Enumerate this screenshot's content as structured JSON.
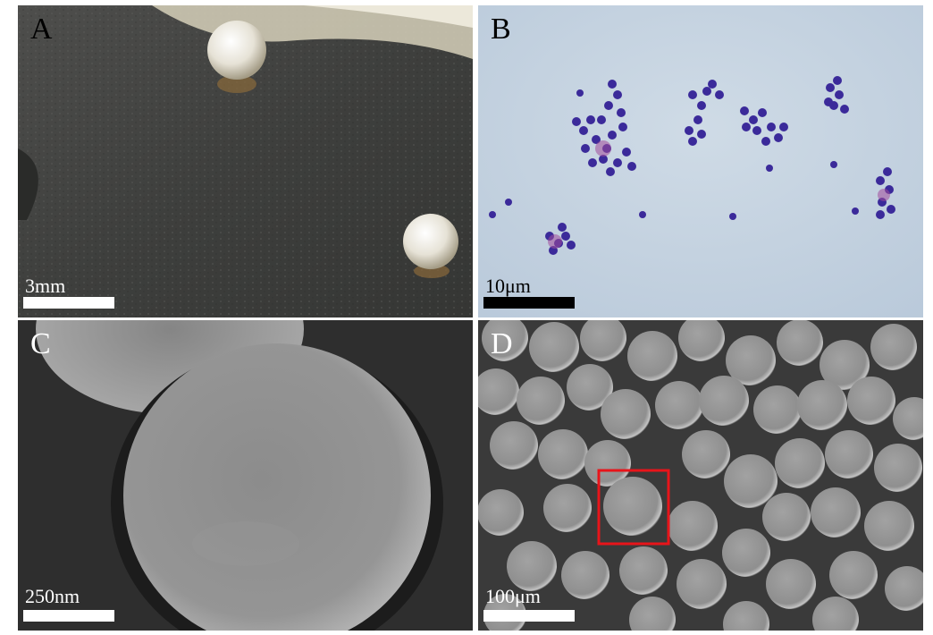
{
  "panels": [
    {
      "letter": "A",
      "scale_label": "3mm",
      "image": "colonies-on-agar-photo"
    },
    {
      "letter": "B",
      "scale_label": "10μm",
      "image": "gram-stained-cocci-micrograph"
    },
    {
      "letter": "C",
      "scale_label": "250nm",
      "image": "single-cell-sem-micrograph"
    },
    {
      "letter": "D",
      "scale_label": "100μm",
      "image": "cell-cluster-sem-micrograph"
    }
  ],
  "colors": {
    "highlight_box": "#e8141a",
    "stain": "#3b2a9a"
  }
}
